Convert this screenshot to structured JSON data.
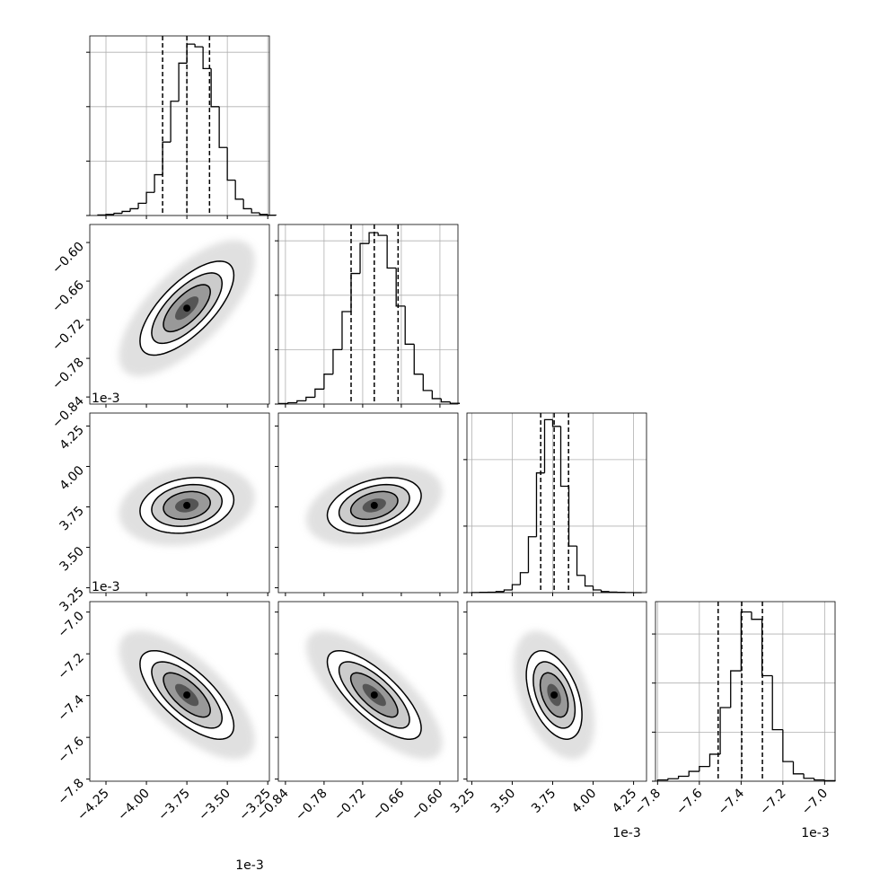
{
  "chart_data": {
    "type": "corner",
    "levels": [
      0.5,
      1,
      1.5,
      2
    ],
    "params": [
      {
        "lim": [
          -4.35,
          -3.24
        ],
        "ticks": [
          {
            "value": -4.25,
            "label": "−4.25"
          },
          {
            "value": -4,
            "label": "−4.00"
          },
          {
            "value": -3.75,
            "label": "−3.75"
          },
          {
            "value": -3.5,
            "label": "−3.50"
          },
          {
            "value": -3.25,
            "label": "−3.25"
          }
        ],
        "offset_x": "1e-3",
        "quantiles": [
          -3.9,
          -3.75,
          -3.61
        ],
        "bins": [
          -4.3,
          -4.25,
          -4.2,
          -4.15,
          -4.1,
          -4.05,
          -4.0,
          -3.95,
          -3.9,
          -3.85,
          -3.8,
          -3.75,
          -3.7,
          -3.65,
          -3.6,
          -3.55,
          -3.5,
          -3.45,
          -3.4,
          -3.35,
          -3.3,
          -3.25,
          -3.2
        ],
        "counts": [
          2,
          4,
          8,
          15,
          25,
          45,
          85,
          150,
          270,
          420,
          560,
          630,
          620,
          540,
          400,
          250,
          130,
          60,
          25,
          10,
          4,
          1
        ],
        "hist_ylim": [
          0,
          660
        ],
        "hist_yticks": [
          0,
          200,
          400,
          600
        ]
      },
      {
        "lim": [
          -0.851,
          -0.572
        ],
        "ticks": [
          {
            "value": -0.84,
            "label": "−0.84"
          },
          {
            "value": -0.78,
            "label": "−0.78"
          },
          {
            "value": -0.72,
            "label": "−0.72"
          },
          {
            "value": -0.66,
            "label": "−0.66"
          },
          {
            "value": -0.6,
            "label": "−0.60"
          }
        ],
        "offset_y": "1e-3",
        "quantiles": [
          -0.738,
          -0.702,
          -0.665
        ],
        "bins": [
          -0.85,
          -0.836,
          -0.822,
          -0.808,
          -0.794,
          -0.78,
          -0.766,
          -0.752,
          -0.738,
          -0.724,
          -0.71,
          -0.696,
          -0.682,
          -0.668,
          -0.654,
          -0.64,
          -0.626,
          -0.612,
          -0.598,
          -0.584,
          -0.57
        ],
        "counts": [
          2,
          5,
          12,
          25,
          55,
          110,
          200,
          340,
          480,
          590,
          630,
          620,
          500,
          360,
          220,
          110,
          50,
          20,
          8,
          3
        ],
        "hist_ylim": [
          0,
          660
        ],
        "hist_yticks": [
          0,
          200,
          400,
          600
        ]
      },
      {
        "lim": [
          3.22,
          4.33
        ],
        "ticks": [
          3.25,
          {
            "value": 3.5,
            "label": "3.50"
          },
          3.75,
          {
            "value": 4,
            "label": "4.00"
          },
          4.25
        ],
        "offset_x": "1e-3",
        "offset_y": "1e-3",
        "quantiles": [
          3.676,
          3.759,
          3.848
        ],
        "bins": [
          3.25,
          3.3,
          3.35,
          3.4,
          3.45,
          3.5,
          3.55,
          3.6,
          3.65,
          3.7,
          3.75,
          3.8,
          3.85,
          3.9,
          3.95,
          4.0,
          4.05,
          4.1,
          4.15,
          4.2,
          4.25,
          4.3
        ],
        "counts": [
          1,
          2,
          3,
          8,
          20,
          60,
          150,
          420,
          900,
          1300,
          1250,
          800,
          350,
          130,
          50,
          20,
          8,
          4,
          2,
          1,
          0
        ],
        "hist_ylim": [
          0,
          1350
        ],
        "hist_yticks": [
          0,
          500,
          1000
        ]
      },
      {
        "lim": [
          -7.81,
          -6.95
        ],
        "ticks": [
          {
            "value": -7.8,
            "label": "−7.8"
          },
          {
            "value": -7.6,
            "label": "−7.6"
          },
          {
            "value": -7.4,
            "label": "−7.4"
          },
          {
            "value": -7.2,
            "label": "−7.2"
          },
          {
            "value": -7,
            "label": "−7.0"
          }
        ],
        "offset_x": "1e-3",
        "quantiles": [
          -7.51,
          -7.397,
          -7.298
        ],
        "bins": [
          -7.8,
          -7.75,
          -7.7,
          -7.65,
          -7.6,
          -7.55,
          -7.5,
          -7.45,
          -7.4,
          -7.35,
          -7.3,
          -7.25,
          -7.2,
          -7.15,
          -7.1,
          -7.05,
          -7.0,
          -6.95
        ],
        "counts": [
          5,
          10,
          20,
          40,
          60,
          110,
          300,
          450,
          690,
          660,
          430,
          210,
          80,
          30,
          12,
          5,
          2
        ],
        "hist_ylim": [
          0,
          732
        ],
        "hist_yticks": [
          0,
          200,
          400,
          600
        ]
      }
    ],
    "pairs": [
      {
        "x": 0,
        "y": 1,
        "rho": 0.7
      },
      {
        "x": 0,
        "y": 2,
        "rho": 0.2
      },
      {
        "x": 1,
        "y": 2,
        "rho": 0.35
      },
      {
        "x": 0,
        "y": 3,
        "rho": -0.7
      },
      {
        "x": 1,
        "y": 3,
        "rho": -0.75
      },
      {
        "x": 2,
        "y": 3,
        "rho": -0.45
      }
    ],
    "grid": true
  }
}
